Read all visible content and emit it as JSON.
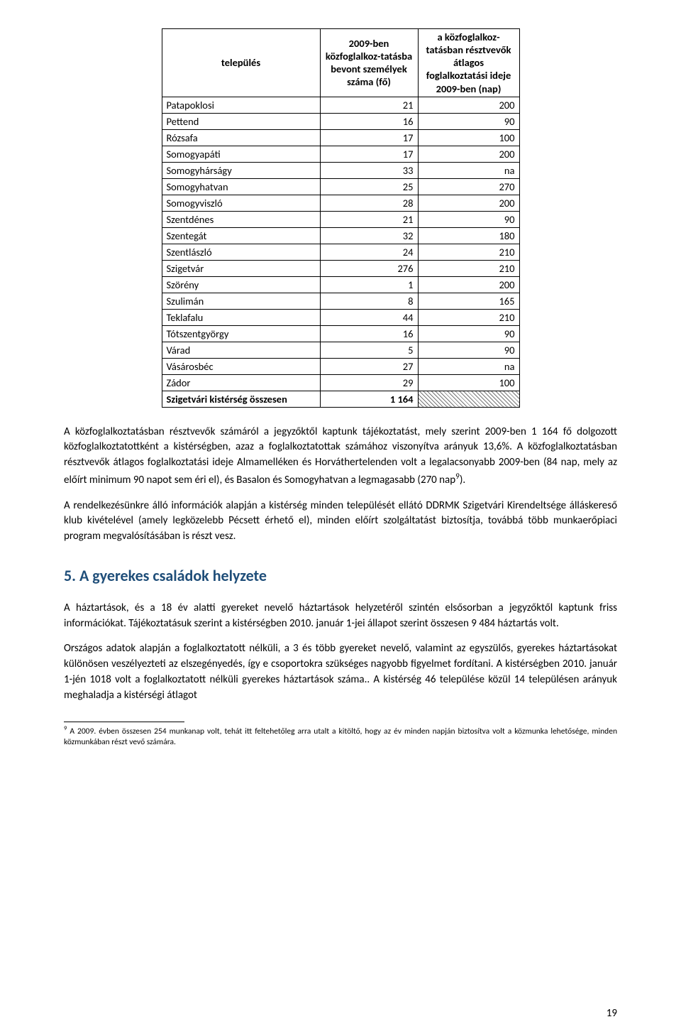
{
  "table": {
    "headers": {
      "col1": "település",
      "col2": "2009-ben közfoglalkoz-tatásba bevont személyek száma (fő)",
      "col3": "a közfoglalkoz-tatásban résztvevők átlagos foglalkoztatási ideje 2009-ben (nap)"
    },
    "rows": [
      {
        "name": "Patapoklosi",
        "v1": "21",
        "v2": "200"
      },
      {
        "name": "Pettend",
        "v1": "16",
        "v2": "90"
      },
      {
        "name": "Rózsafa",
        "v1": "17",
        "v2": "100"
      },
      {
        "name": "Somogyapáti",
        "v1": "17",
        "v2": "200"
      },
      {
        "name": "Somogyhárságy",
        "v1": "33",
        "v2": "na"
      },
      {
        "name": "Somogyhatvan",
        "v1": "25",
        "v2": "270"
      },
      {
        "name": "Somogyviszló",
        "v1": "28",
        "v2": "200"
      },
      {
        "name": "Szentdénes",
        "v1": "21",
        "v2": "90"
      },
      {
        "name": "Szentegát",
        "v1": "32",
        "v2": "180"
      },
      {
        "name": "Szentlászló",
        "v1": "24",
        "v2": "210"
      },
      {
        "name": "Szigetvár",
        "v1": "276",
        "v2": "210"
      },
      {
        "name": "Szörény",
        "v1": "1",
        "v2": "200"
      },
      {
        "name": "Szulimán",
        "v1": "8",
        "v2": "165"
      },
      {
        "name": "Teklafalu",
        "v1": "44",
        "v2": "210"
      },
      {
        "name": "Tótszentgyörgy",
        "v1": "16",
        "v2": "90"
      },
      {
        "name": "Várad",
        "v1": "5",
        "v2": "90"
      },
      {
        "name": "Vásárosbéc",
        "v1": "27",
        "v2": "na"
      },
      {
        "name": "Zádor",
        "v1": "29",
        "v2": "100"
      }
    ],
    "total": {
      "name": "Szigetvári kistérség összesen",
      "v1": "1 164"
    }
  },
  "paragraphs": {
    "p1": "A közfoglalkoztatásban résztvevők számáról a jegyzőktől kaptunk tájékoztatást, mely szerint 2009-ben 1 164 fő dolgozott közfoglalkoztatottként a kistérségben, azaz a foglalkoztatottak számához viszonyítva arányuk 13,6%. A közfoglalkoztatásban résztvevők átlagos foglalkoztatási ideje Almamelléken és Horváthertelenden volt a legalacsonyabb 2009-ben (84 nap, mely az előírt minimum 90 napot sem éri el), és Basalon és Somogyhatvan a legmagasabb (270 nap",
    "p1_sup": "9",
    "p1_end": ").",
    "p2": "A rendelkezésünkre álló információk alapján a kistérség minden települését ellátó DDRMK Szigetvári Kirendeltsége álláskereső klub kivételével (amely legközelebb Pécsett érhető el), minden előírt szolgáltatást biztosítja, továbbá több munkaerőpiaci program megvalósításában is részt vesz.",
    "p3": "A háztartások, és a 18 év alatti gyereket nevelő háztartások helyzetéről szintén elsősorban a jegyzőktől kaptunk friss információkat. Tájékoztatásuk szerint a kistérségben 2010. január 1-jei állapot szerint összesen 9 484 háztartás volt.",
    "p4": "Országos adatok alapján a foglalkoztatott nélküli, a 3 és több gyereket nevelő, valamint az egyszülős, gyerekes háztartásokat különösen veszélyezteti az elszegényedés, így e csoportokra szükséges nagyobb figyelmet fordítani. A kistérségben 2010. január 1-jén 1018 volt a foglalkoztatott nélküli gyerekes háztartások száma.. A kistérség 46 települése közül 14 településen arányuk meghaladja a kistérségi átlagot"
  },
  "heading": "5. A gyerekes családok helyzete",
  "footnote": {
    "marker": "9",
    "text": " A 2009. évben összesen 254 munkanap volt, tehát itt feltehetőleg arra utalt a kitöltő, hogy az év minden napján biztosítva volt a közmunka lehetősége, minden közmunkában részt vevő számára."
  },
  "pagenum": "19",
  "colors": {
    "heading": "#1f4e79",
    "text": "#000000",
    "border": "#000000",
    "background": "#ffffff"
  }
}
